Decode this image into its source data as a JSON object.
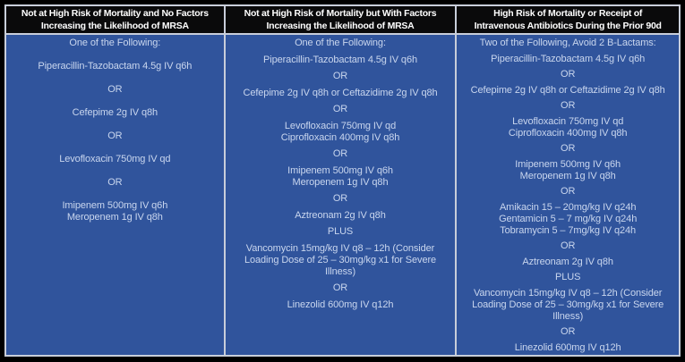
{
  "colors": {
    "canvas_bg": "#000000",
    "header_bg": "#0A0A0B",
    "header_text": "#FFFFFF",
    "body_bg": "#30549C",
    "body_text": "#C9D6EE",
    "cell_border": "#C8CEDA"
  },
  "table": {
    "columns": [
      {
        "header": "Not at High Risk of Mortality and No Factors\nIncreasing the Likelihood of MRSA",
        "items": [
          "One of the Following:",
          "Piperacillin-Tazobactam 4.5g IV q6h",
          "OR",
          "Cefepime 2g IV q8h",
          "OR",
          "Levofloxacin 750mg IV qd",
          "OR",
          "Imipenem 500mg IV q6h\nMeropenem 1g IV q8h"
        ]
      },
      {
        "header": "Not at High Risk of Mortality but With Factors\nIncreasing the Likelihood of MRSA",
        "items": [
          "One of the Following:",
          "Piperacillin-Tazobactam 4.5g IV q6h",
          "OR",
          "Cefepime 2g IV q8h or Ceftazidime 2g IV q8h",
          "OR",
          "Levofloxacin 750mg IV qd\nCiprofloxacin 400mg IV q8h",
          "OR",
          "Imipenem 500mg IV q6h\nMeropenem 1g IV q8h",
          "OR",
          "Aztreonam 2g IV q8h",
          "PLUS",
          "Vancomycin 15mg/kg IV q8 – 12h (Consider Loading Dose of 25 – 30mg/kg x1 for Severe Illness)",
          "OR",
          "Linezolid 600mg IV q12h"
        ]
      },
      {
        "header": "High Risk of Mortality or Receipt of\nIntravenous Antibiotics During the Prior 90d",
        "items": [
          "Two of the Following, Avoid 2 B-Lactams:",
          "Piperacillin-Tazobactam 4.5g IV q6h",
          "OR",
          "Cefepime 2g IV q8h or Ceftazidime 2g IV q8h",
          "OR",
          "Levofloxacin 750mg IV qd\nCiprofloxacin 400mg IV q8h",
          "OR",
          "Imipenem 500mg IV q6h\nMeropenem 1g IV q8h",
          "OR",
          "Amikacin 15 – 20mg/kg IV q24h\nGentamicin 5 – 7 mg/kg IV q24h\nTobramycin 5 – 7mg/kg IV q24h",
          "OR",
          "Aztreonam 2g IV q8h",
          "PLUS",
          "Vancomycin 15mg/kg IV q8 – 12h (Consider Loading Dose of 25 – 30mg/kg x1 for Severe Illness)",
          "OR",
          "Linezolid 600mg IV q12h"
        ]
      }
    ]
  }
}
